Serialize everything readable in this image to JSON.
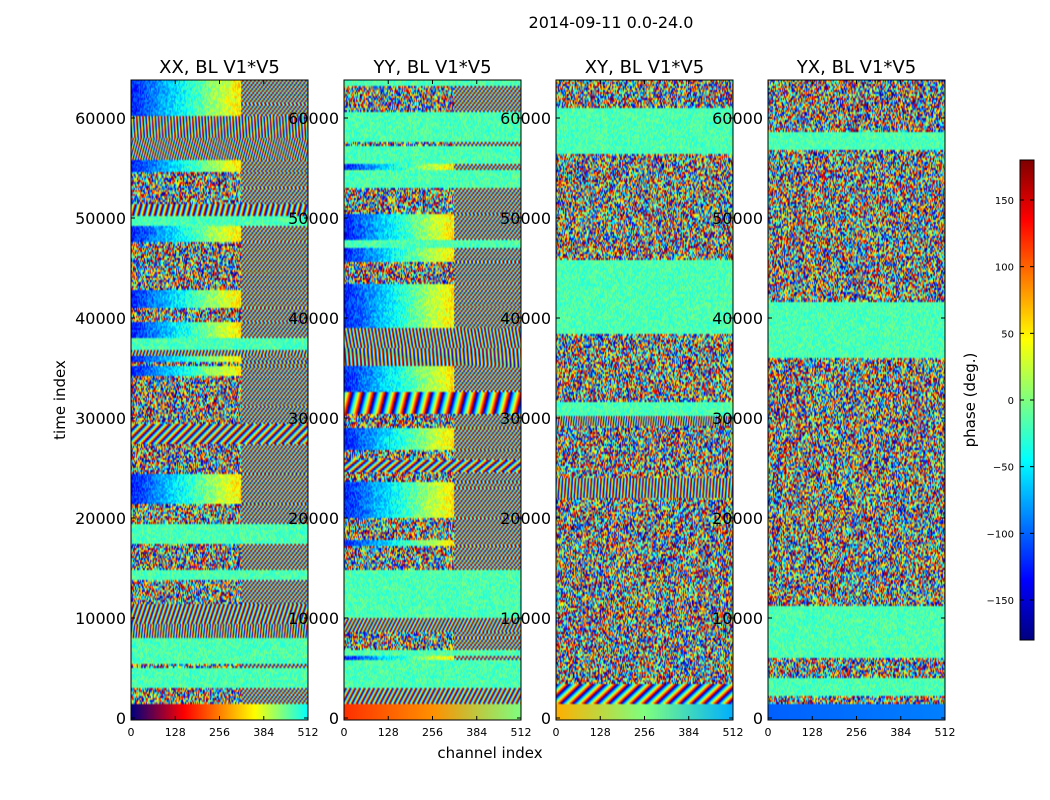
{
  "figure": {
    "suptitle": "2014-09-11 0.0-24.0",
    "xlabel": "channel index",
    "ylabel": "time index"
  },
  "chart_data": {
    "type": "heatmap",
    "x_range": [
      0,
      512
    ],
    "y_range": [
      0,
      64000
    ],
    "x_ticks": [
      0,
      128,
      256,
      384,
      512
    ],
    "y_ticks": [
      0,
      10000,
      20000,
      30000,
      40000,
      50000,
      60000
    ],
    "panels": [
      {
        "title": "XX, BL V1*V5",
        "pol": "XX"
      },
      {
        "title": "YY, BL V1*V5",
        "pol": "YY"
      },
      {
        "title": "XY, BL V1*V5",
        "pol": "XY"
      },
      {
        "title": "YX, BL V1*V5",
        "pol": "YX"
      }
    ],
    "colorbar": {
      "label": "phase (deg.)",
      "range": [
        -180,
        180
      ],
      "ticks": [
        -150,
        -100,
        -50,
        0,
        50,
        100,
        150
      ],
      "tick_labels": [
        "−150",
        "−100",
        "−50",
        "0",
        "50",
        "100",
        "150"
      ],
      "colormap": "jet",
      "colors": [
        "#00007f",
        "#0000ff",
        "#007fff",
        "#00ffff",
        "#7fff7f",
        "#ffff00",
        "#ff7f00",
        "#ff0000",
        "#7f0000"
      ]
    }
  }
}
